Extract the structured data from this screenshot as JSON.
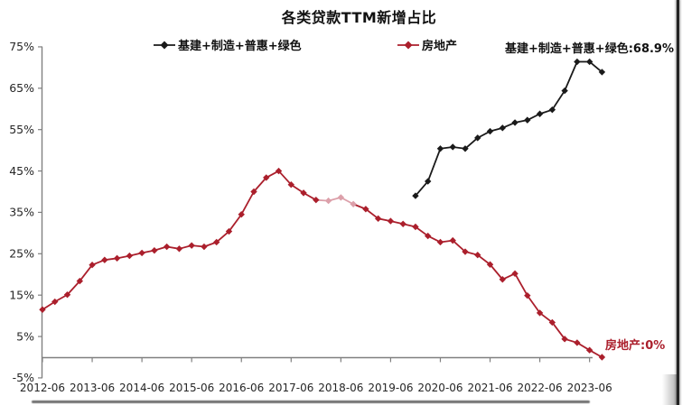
{
  "title": "各类贷款TTM新增占比",
  "legend": {
    "infra": {
      "label": "基建+制造+普惠+绿色",
      "color": "#1a1a1a"
    },
    "property": {
      "label": "房地产",
      "color": "#ab1f2c"
    }
  },
  "annotations": {
    "infra_latest": {
      "text": "基建+制造+普惠+绿色:68.9%",
      "color": "#111111"
    },
    "property_latest": {
      "text": "房地产:0%",
      "color": "#ab1f2c"
    }
  },
  "axis_color": "#808080",
  "tick_label_color": "#262626",
  "chart_data": {
    "type": "line",
    "title": "各类贷款TTM新增占比",
    "x": [
      "2012-06",
      "2012-09",
      "2012-12",
      "2013-03",
      "2013-06",
      "2013-09",
      "2013-12",
      "2014-03",
      "2014-06",
      "2014-09",
      "2014-12",
      "2015-03",
      "2015-06",
      "2015-09",
      "2015-12",
      "2016-03",
      "2016-06",
      "2016-09",
      "2016-12",
      "2017-03",
      "2017-06",
      "2017-09",
      "2017-12",
      "2018-03",
      "2018-06",
      "2018-09",
      "2018-12",
      "2019-03",
      "2019-06",
      "2019-09",
      "2019-12",
      "2020-03",
      "2020-06",
      "2020-09",
      "2020-12",
      "2021-03",
      "2021-06",
      "2021-09",
      "2021-12",
      "2022-03",
      "2022-06",
      "2022-09",
      "2022-12",
      "2023-03",
      "2023-06",
      "2023-09"
    ],
    "x_tick_labels": [
      "2012-06",
      "2013-06",
      "2014-06",
      "2015-06",
      "2016-06",
      "2017-06",
      "2018-06",
      "2019-06",
      "2020-06",
      "2021-06",
      "2022-06",
      "2023-06"
    ],
    "ylim": [
      -5,
      75
    ],
    "y_ticks": [
      75,
      65,
      55,
      45,
      35,
      25,
      15,
      5,
      -5
    ],
    "y_tick_suffix": "%",
    "grid": false,
    "legend_position": "top",
    "series": [
      {
        "name": "房地产",
        "color": "#ab1f2c",
        "highlight_color": "#dca0aa",
        "highlight_quarters": [
          "2018-03",
          "2018-06",
          "2018-09"
        ],
        "start": "2012-06",
        "values": [
          11.5,
          13.4,
          15.1,
          18.4,
          22.3,
          23.5,
          23.9,
          24.5,
          25.2,
          25.8,
          26.7,
          26.2,
          27.0,
          26.7,
          27.8,
          30.4,
          34.5,
          40.0,
          43.4,
          45.0,
          41.7,
          39.7,
          38.0,
          37.8,
          38.6,
          37.0,
          35.8,
          33.5,
          32.9,
          32.2,
          31.5,
          29.3,
          27.8,
          28.2,
          25.5,
          24.7,
          22.4,
          18.8,
          20.2,
          14.9,
          10.7,
          8.4,
          4.4,
          3.5,
          1.7,
          0.0
        ]
      },
      {
        "name": "基建+制造+普惠+绿色",
        "color": "#1a1a1a",
        "start": "2019-12",
        "values": [
          39.0,
          42.5,
          50.4,
          50.8,
          50.4,
          53.0,
          54.6,
          55.4,
          56.7,
          57.3,
          58.8,
          59.8,
          64.4,
          71.4,
          71.4,
          68.9
        ]
      }
    ]
  }
}
